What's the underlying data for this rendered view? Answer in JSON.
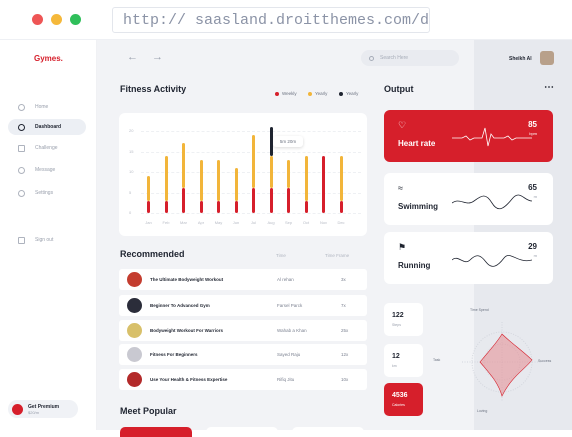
{
  "browser": {
    "url": "http:// saasland.droitthemes.com/demos/",
    "dots": [
      "#ee5555",
      "#f5b83a",
      "#2fbf5a"
    ]
  },
  "sidebar": {
    "logo": "Gymes.",
    "items": [
      {
        "label": "Home",
        "icon": "home-icon"
      },
      {
        "label": "Dashboard",
        "icon": "activity-icon"
      },
      {
        "label": "Challenge",
        "icon": "calendar-icon"
      },
      {
        "label": "Message",
        "icon": "message-icon"
      },
      {
        "label": "Settings",
        "icon": "gear-icon"
      },
      {
        "label": "Sign out",
        "icon": "logout-icon"
      }
    ],
    "premium": {
      "title": "Get Premium",
      "subtitle": "$20/m"
    }
  },
  "header": {
    "search_placeholder": "Search Here",
    "user_name": "Sheikh Al"
  },
  "fitness": {
    "title": "Fitness Activity",
    "legend": [
      {
        "label": "Weekly",
        "color": "#d61f2b"
      },
      {
        "label": "Yearly",
        "color": "#f2b53a"
      },
      {
        "label": "Yearly",
        "color": "#1f2430"
      }
    ],
    "tooltip": "5m 20m"
  },
  "chart_data": {
    "type": "bar",
    "categories": [
      "Jan",
      "Feb",
      "Mar",
      "Apr",
      "May",
      "Jun",
      "Jul",
      "Aug",
      "Sep",
      "Oct",
      "Nov",
      "Dec"
    ],
    "y_ticks": [
      "20",
      "15",
      "10",
      "5",
      "0"
    ],
    "ylim": [
      0,
      20
    ],
    "series": [
      {
        "color": "#d61f2b",
        "values": [
          3,
          3,
          6,
          3,
          3,
          3,
          6,
          6,
          6,
          3,
          14,
          3
        ]
      },
      {
        "color": "#f2b53a",
        "values": [
          6,
          11,
          11,
          10,
          10,
          8,
          13,
          8,
          7,
          11,
          0,
          11
        ]
      },
      {
        "color": "#1f2430",
        "values": [
          0,
          0,
          0,
          0,
          0,
          0,
          0,
          7,
          0,
          0,
          0,
          0
        ]
      }
    ]
  },
  "recommended": {
    "title": "Recommended",
    "columns": [
      "Time",
      "Time Frame"
    ],
    "rows": [
      {
        "title": "The Ultimate Bodyweight Workout",
        "name": "Al rehan",
        "fc": "3x",
        "color": "#c43d2f"
      },
      {
        "title": "Beginner To Advanced Gym",
        "name": "Farsel Parck",
        "fc": "7x",
        "color": "#2b2d3a"
      },
      {
        "title": "Bodyweight Workout For Warriors",
        "name": "Wahab a Khan",
        "fc": "25x",
        "color": "#d8c06a"
      },
      {
        "title": "Fitness For Beginners",
        "name": "Sayed Raju",
        "fc": "12x",
        "color": "#c9c9d1"
      },
      {
        "title": "Use Your Health & Fitness Expertise",
        "name": "Rifiq Jitu",
        "fc": "10x",
        "color": "#b32a2a"
      }
    ]
  },
  "popular": {
    "title": "Meet Popular"
  },
  "output": {
    "title": "Output",
    "cards": [
      {
        "label": "Heart rate",
        "value": "85",
        "unit": "bpm",
        "icon": "heart-icon"
      },
      {
        "label": "Swimming",
        "value": "65",
        "unit": "m",
        "icon": "swim-icon"
      },
      {
        "label": "Running",
        "value": "29",
        "unit": "m",
        "icon": "run-icon"
      }
    ],
    "mini": [
      {
        "value": "122",
        "unit": "Steps"
      },
      {
        "value": "12",
        "unit": "km"
      },
      {
        "value": "4536",
        "unit": "Calories"
      }
    ],
    "radar_labels": [
      "Time Spend",
      "Task",
      "Success",
      "Loving"
    ]
  }
}
